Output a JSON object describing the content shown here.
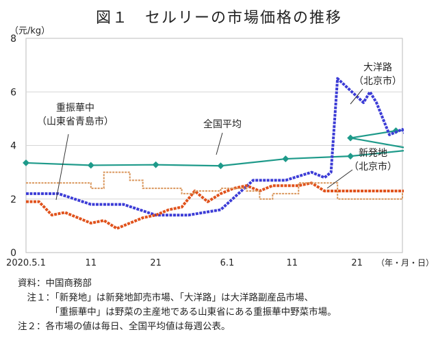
{
  "title": "図１　セルリーの市場価格の推移",
  "unit_label": "（元/kg）",
  "date_unit_label": "（年・月・日）",
  "notes": [
    "資料：中国商務部",
    "　注１：「新発地」は新発地卸売市場、「大洋路」は大洋路副産品市場、",
    "　　　　「重振華中」は野菜の主産地である山東省にある重振華中野菜市場。",
    "注２：各市場の値は毎日、全国平均値は毎週公表。"
  ],
  "chart_data": {
    "type": "line",
    "title": "図１　セルリーの市場価格の推移",
    "ylabel": "（元/kg）",
    "xlabel": "（年・月・日）",
    "ylim": [
      0,
      8
    ],
    "yticks": [
      0,
      2,
      4,
      6,
      8
    ],
    "xlim": [
      "2020-05-01",
      "2020-06-28"
    ],
    "xticks": [
      {
        "date": "2020-05-01",
        "label": "2020.5.1"
      },
      {
        "date": "2020-05-11",
        "label": "11"
      },
      {
        "date": "2020-05-21",
        "label": "21"
      },
      {
        "date": "2020-06-01",
        "label": "6.1"
      },
      {
        "date": "2020-06-11",
        "label": "11"
      },
      {
        "date": "2020-06-21",
        "label": "21"
      }
    ],
    "grid": "horizontal",
    "series": [
      {
        "name": "全国平均",
        "label_lines": [
          "全国平均"
        ],
        "color": "#1e9a8a",
        "style": "solid-markers",
        "x": [
          "2020-05-01",
          "2020-05-11",
          "2020-05-21",
          "2020-05-31",
          "2020-06-10",
          "2020-06-20",
          "2020-06-30"
        ],
        "values": [
          3.35,
          3.26,
          3.28,
          3.24,
          3.5,
          3.6,
          3.85
        ],
        "x2": [
          "2020-06-10",
          "2020-06-20",
          "2020-06-27",
          "2020-07-03"
        ],
        "values2": [
          3.85,
          4.28,
          4.55,
          4.65
        ]
      },
      {
        "name": "大洋路",
        "label_lines": [
          "大洋路",
          "（北京市）"
        ],
        "color": "#3c3cd6",
        "style": "dotted-thick",
        "x": [
          "2020-05-01",
          "2020-05-06",
          "2020-05-11",
          "2020-05-16",
          "2020-05-21",
          "2020-05-26",
          "2020-05-31",
          "2020-06-05",
          "2020-06-10",
          "2020-06-14",
          "2020-06-16",
          "2020-06-17",
          "2020-06-18",
          "2020-06-22",
          "2020-06-23",
          "2020-06-24",
          "2020-06-26",
          "2020-06-28",
          "2020-06-29",
          "2020-06-30"
        ],
        "values": [
          2.2,
          2.2,
          1.8,
          1.8,
          1.4,
          1.4,
          1.6,
          2.7,
          2.7,
          3.0,
          2.8,
          3.0,
          6.5,
          5.6,
          6.0,
          5.6,
          4.4,
          4.6,
          4.2,
          5.0
        ]
      },
      {
        "name": "新発地",
        "label_lines": [
          "新発地",
          "（北京市）"
        ],
        "color": "#e0521c",
        "style": "dotted-thick",
        "x": [
          "2020-05-01",
          "2020-05-03",
          "2020-05-05",
          "2020-05-07",
          "2020-05-09",
          "2020-05-11",
          "2020-05-13",
          "2020-05-15",
          "2020-05-17",
          "2020-05-19",
          "2020-05-21",
          "2020-05-23",
          "2020-05-25",
          "2020-05-27",
          "2020-05-29",
          "2020-05-31",
          "2020-06-02",
          "2020-06-04",
          "2020-06-06",
          "2020-06-08",
          "2020-06-10",
          "2020-06-12",
          "2020-06-14",
          "2020-06-16",
          "2020-06-18",
          "2020-06-20",
          "2020-06-22",
          "2020-06-24",
          "2020-06-26",
          "2020-06-28",
          "2020-06-30"
        ],
        "values": [
          1.9,
          1.9,
          1.4,
          1.5,
          1.3,
          1.1,
          1.2,
          0.9,
          1.1,
          1.3,
          1.4,
          1.6,
          1.7,
          2.3,
          1.9,
          2.2,
          2.4,
          2.5,
          2.3,
          2.5,
          2.5,
          2.5,
          2.6,
          2.3,
          2.3,
          2.3,
          2.3,
          2.3,
          2.3,
          2.3,
          2.3
        ]
      },
      {
        "name": "重振華中",
        "label_lines": [
          "重振華中",
          "（山東省青島市）"
        ],
        "color": "#d9955a",
        "style": "dashed-thin",
        "x": [
          "2020-05-01",
          "2020-05-03",
          "2020-05-05",
          "2020-05-07",
          "2020-05-09",
          "2020-05-11",
          "2020-05-13",
          "2020-05-15",
          "2020-05-17",
          "2020-05-19",
          "2020-05-21",
          "2020-05-23",
          "2020-05-25",
          "2020-05-27",
          "2020-05-29",
          "2020-05-31",
          "2020-06-02",
          "2020-06-04",
          "2020-06-06",
          "2020-06-08",
          "2020-06-10",
          "2020-06-12",
          "2020-06-14",
          "2020-06-16",
          "2020-06-18",
          "2020-06-20",
          "2020-06-22",
          "2020-06-24",
          "2020-06-26",
          "2020-06-28",
          "2020-06-30"
        ],
        "values": [
          2.6,
          2.6,
          2.6,
          2.6,
          2.6,
          2.4,
          3.0,
          3.0,
          2.7,
          2.4,
          2.4,
          2.4,
          2.2,
          2.3,
          2.3,
          2.4,
          2.4,
          2.3,
          2.0,
          2.2,
          2.2,
          2.6,
          2.6,
          2.6,
          2.0,
          2.0,
          2.0,
          2.0,
          2.0,
          2.2,
          2.6
        ]
      }
    ]
  }
}
